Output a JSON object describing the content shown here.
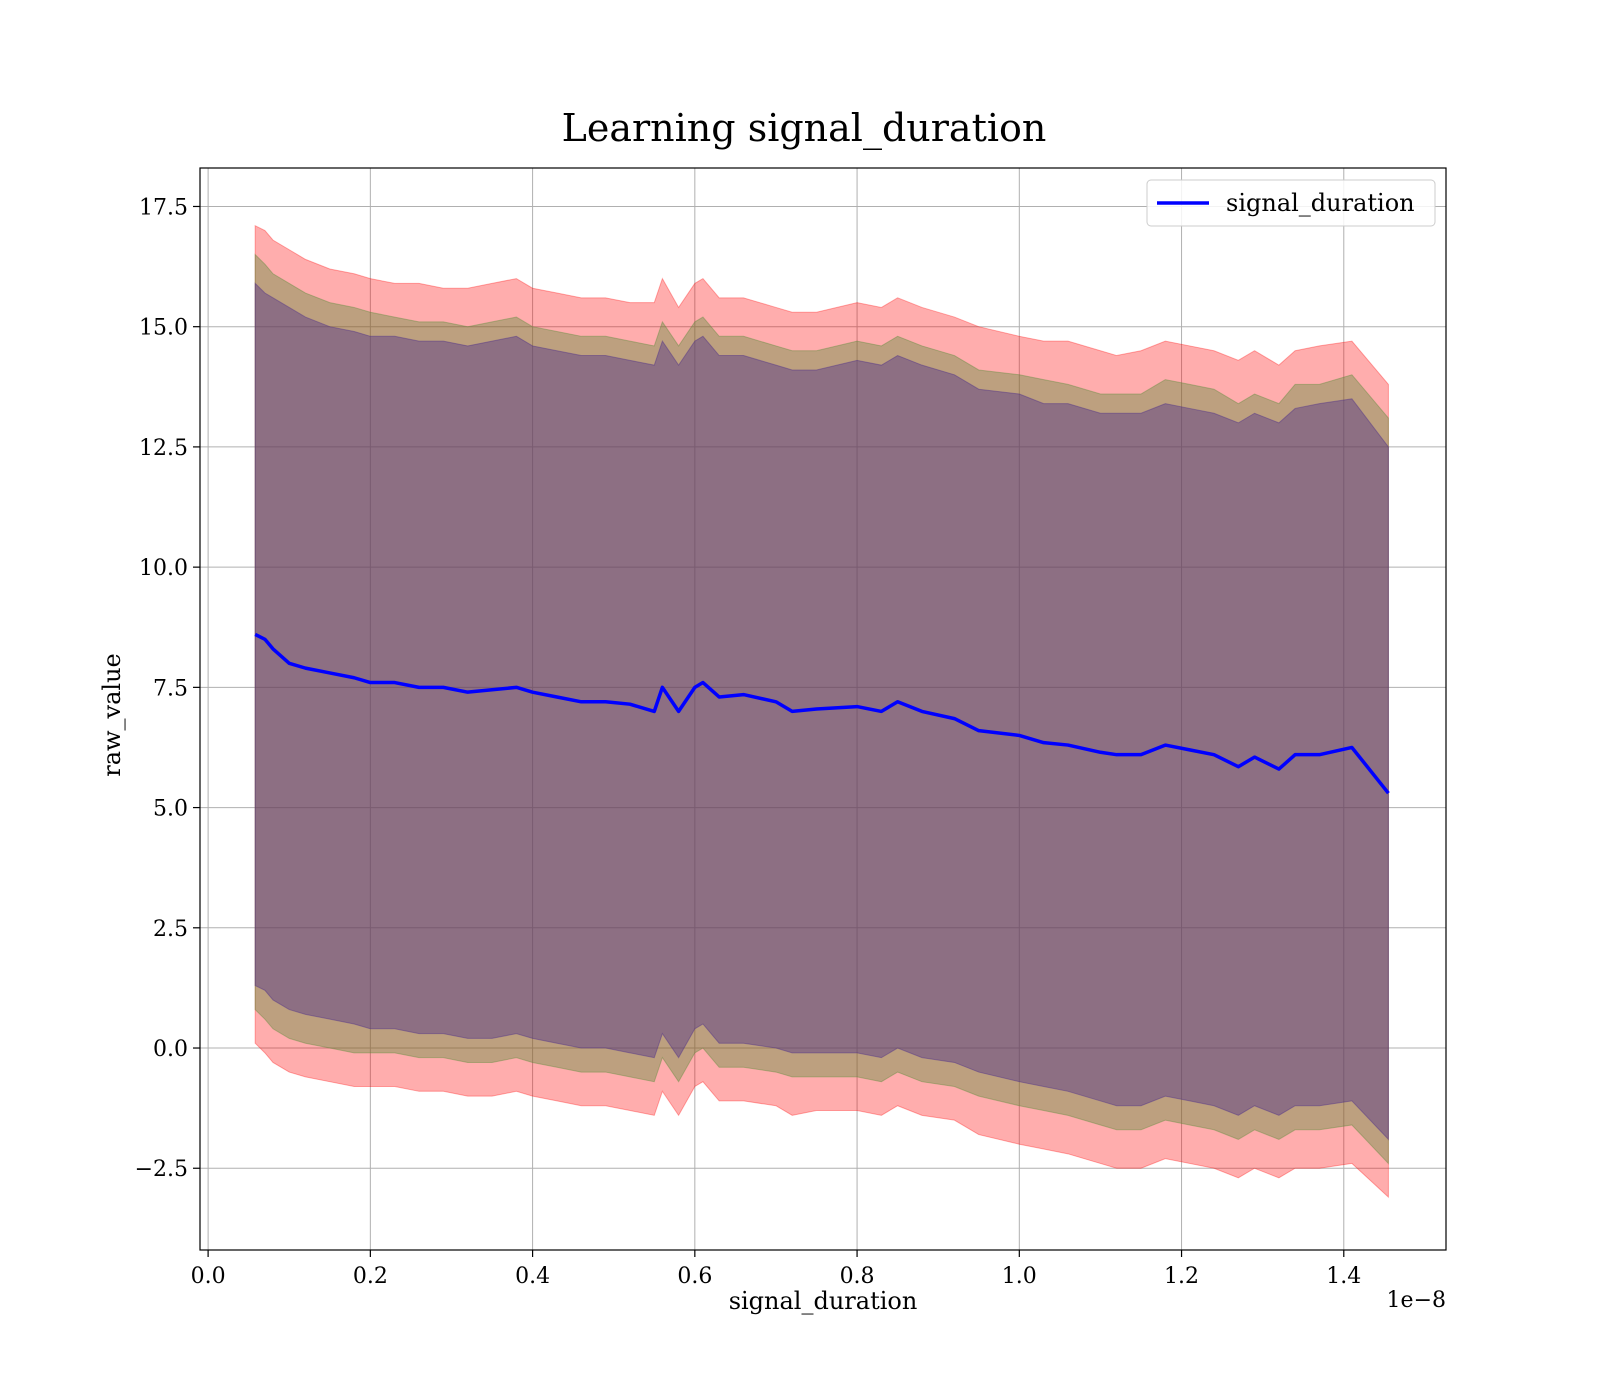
{
  "chart_data": {
    "type": "line",
    "title": "Learning signal_duration",
    "xlabel": "signal_duration",
    "ylabel": "raw_value",
    "x_offset_text": "1e−8",
    "xlim": [
      -0.01,
      1.526
    ],
    "ylim": [
      -4.2,
      18.3
    ],
    "x_ticks": [
      0.0,
      0.2,
      0.4,
      0.6,
      0.8,
      1.0,
      1.2,
      1.4
    ],
    "x_tick_labels": [
      "0.0",
      "0.2",
      "0.4",
      "0.6",
      "0.8",
      "1.0",
      "1.2",
      "1.4"
    ],
    "y_ticks": [
      -2.5,
      0.0,
      2.5,
      5.0,
      7.5,
      10.0,
      12.5,
      15.0,
      17.5
    ],
    "y_tick_labels": [
      "−2.5",
      "0.0",
      "2.5",
      "5.0",
      "7.5",
      "10.0",
      "12.5",
      "15.0",
      "17.5"
    ],
    "grid": true,
    "legend_position": "top-right",
    "series": [
      {
        "name": "signal_duration",
        "color": "#0000ff",
        "x": [
          0.058,
          0.07,
          0.08,
          0.1,
          0.12,
          0.15,
          0.18,
          0.2,
          0.23,
          0.26,
          0.29,
          0.32,
          0.35,
          0.38,
          0.4,
          0.43,
          0.46,
          0.49,
          0.52,
          0.55,
          0.56,
          0.58,
          0.6,
          0.61,
          0.63,
          0.66,
          0.7,
          0.72,
          0.75,
          0.8,
          0.83,
          0.85,
          0.88,
          0.92,
          0.95,
          1.0,
          1.03,
          1.06,
          1.1,
          1.12,
          1.15,
          1.18,
          1.21,
          1.24,
          1.27,
          1.29,
          1.32,
          1.34,
          1.37,
          1.41,
          1.455
        ],
        "y": [
          8.6,
          8.5,
          8.3,
          8.0,
          7.9,
          7.8,
          7.7,
          7.6,
          7.6,
          7.5,
          7.5,
          7.4,
          7.45,
          7.5,
          7.4,
          7.3,
          7.2,
          7.2,
          7.15,
          7.0,
          7.5,
          7.0,
          7.5,
          7.6,
          7.3,
          7.35,
          7.2,
          7.0,
          7.05,
          7.1,
          7.0,
          7.2,
          7.0,
          6.85,
          6.6,
          6.5,
          6.35,
          6.3,
          6.15,
          6.1,
          6.1,
          6.3,
          6.2,
          6.1,
          5.85,
          6.05,
          5.8,
          6.1,
          6.1,
          6.25,
          5.3
        ]
      }
    ],
    "bands": [
      {
        "color": "#ff0000",
        "opacity": 0.32,
        "x": [
          0.058,
          0.07,
          0.08,
          0.1,
          0.12,
          0.15,
          0.18,
          0.2,
          0.23,
          0.26,
          0.29,
          0.32,
          0.35,
          0.38,
          0.4,
          0.43,
          0.46,
          0.49,
          0.52,
          0.55,
          0.56,
          0.58,
          0.6,
          0.61,
          0.63,
          0.66,
          0.7,
          0.72,
          0.75,
          0.8,
          0.83,
          0.85,
          0.88,
          0.92,
          0.95,
          1.0,
          1.03,
          1.06,
          1.1,
          1.12,
          1.15,
          1.18,
          1.21,
          1.24,
          1.27,
          1.29,
          1.32,
          1.34,
          1.37,
          1.41,
          1.455
        ],
        "upper": [
          17.1,
          17.0,
          16.8,
          16.6,
          16.4,
          16.2,
          16.1,
          16.0,
          15.9,
          15.9,
          15.8,
          15.8,
          15.9,
          16.0,
          15.8,
          15.7,
          15.6,
          15.6,
          15.5,
          15.5,
          16.0,
          15.4,
          15.9,
          16.0,
          15.6,
          15.6,
          15.4,
          15.3,
          15.3,
          15.5,
          15.4,
          15.6,
          15.4,
          15.2,
          15.0,
          14.8,
          14.7,
          14.7,
          14.5,
          14.4,
          14.5,
          14.7,
          14.6,
          14.5,
          14.3,
          14.5,
          14.2,
          14.5,
          14.6,
          14.7,
          13.8
        ],
        "lower": [
          0.1,
          -0.1,
          -0.3,
          -0.5,
          -0.6,
          -0.7,
          -0.8,
          -0.8,
          -0.8,
          -0.9,
          -0.9,
          -1.0,
          -1.0,
          -0.9,
          -1.0,
          -1.1,
          -1.2,
          -1.2,
          -1.3,
          -1.4,
          -0.9,
          -1.4,
          -0.8,
          -0.7,
          -1.1,
          -1.1,
          -1.2,
          -1.4,
          -1.3,
          -1.3,
          -1.4,
          -1.2,
          -1.4,
          -1.5,
          -1.8,
          -2.0,
          -2.1,
          -2.2,
          -2.4,
          -2.5,
          -2.5,
          -2.3,
          -2.4,
          -2.5,
          -2.7,
          -2.5,
          -2.7,
          -2.5,
          -2.5,
          -2.4,
          -3.1
        ]
      },
      {
        "color": "#5a8c3a",
        "opacity": 0.4,
        "x": [
          0.058,
          0.07,
          0.08,
          0.1,
          0.12,
          0.15,
          0.18,
          0.2,
          0.23,
          0.26,
          0.29,
          0.32,
          0.35,
          0.38,
          0.4,
          0.43,
          0.46,
          0.49,
          0.52,
          0.55,
          0.56,
          0.58,
          0.6,
          0.61,
          0.63,
          0.66,
          0.7,
          0.72,
          0.75,
          0.8,
          0.83,
          0.85,
          0.88,
          0.92,
          0.95,
          1.0,
          1.03,
          1.06,
          1.1,
          1.12,
          1.15,
          1.18,
          1.21,
          1.24,
          1.27,
          1.29,
          1.32,
          1.34,
          1.37,
          1.41,
          1.455
        ],
        "upper": [
          16.5,
          16.3,
          16.1,
          15.9,
          15.7,
          15.5,
          15.4,
          15.3,
          15.2,
          15.1,
          15.1,
          15.0,
          15.1,
          15.2,
          15.0,
          14.9,
          14.8,
          14.8,
          14.7,
          14.6,
          15.1,
          14.6,
          15.1,
          15.2,
          14.8,
          14.8,
          14.6,
          14.5,
          14.5,
          14.7,
          14.6,
          14.8,
          14.6,
          14.4,
          14.1,
          14.0,
          13.9,
          13.8,
          13.6,
          13.6,
          13.6,
          13.9,
          13.8,
          13.7,
          13.4,
          13.6,
          13.4,
          13.8,
          13.8,
          14.0,
          13.1
        ],
        "lower": [
          0.8,
          0.6,
          0.4,
          0.2,
          0.1,
          0.0,
          -0.1,
          -0.1,
          -0.1,
          -0.2,
          -0.2,
          -0.3,
          -0.3,
          -0.2,
          -0.3,
          -0.4,
          -0.5,
          -0.5,
          -0.6,
          -0.7,
          -0.2,
          -0.7,
          -0.1,
          0.0,
          -0.4,
          -0.4,
          -0.5,
          -0.6,
          -0.6,
          -0.6,
          -0.7,
          -0.5,
          -0.7,
          -0.8,
          -1.0,
          -1.2,
          -1.3,
          -1.4,
          -1.6,
          -1.7,
          -1.7,
          -1.5,
          -1.6,
          -1.7,
          -1.9,
          -1.7,
          -1.9,
          -1.7,
          -1.7,
          -1.6,
          -2.4
        ]
      },
      {
        "color": "#4b2c8a",
        "opacity": 0.42,
        "x": [
          0.058,
          0.07,
          0.08,
          0.1,
          0.12,
          0.15,
          0.18,
          0.2,
          0.23,
          0.26,
          0.29,
          0.32,
          0.35,
          0.38,
          0.4,
          0.43,
          0.46,
          0.49,
          0.52,
          0.55,
          0.56,
          0.58,
          0.6,
          0.61,
          0.63,
          0.66,
          0.7,
          0.72,
          0.75,
          0.8,
          0.83,
          0.85,
          0.88,
          0.92,
          0.95,
          1.0,
          1.03,
          1.06,
          1.1,
          1.12,
          1.15,
          1.18,
          1.21,
          1.24,
          1.27,
          1.29,
          1.32,
          1.34,
          1.37,
          1.41,
          1.455
        ],
        "upper": [
          15.9,
          15.7,
          15.6,
          15.4,
          15.2,
          15.0,
          14.9,
          14.8,
          14.8,
          14.7,
          14.7,
          14.6,
          14.7,
          14.8,
          14.6,
          14.5,
          14.4,
          14.4,
          14.3,
          14.2,
          14.7,
          14.2,
          14.7,
          14.8,
          14.4,
          14.4,
          14.2,
          14.1,
          14.1,
          14.3,
          14.2,
          14.4,
          14.2,
          14.0,
          13.7,
          13.6,
          13.4,
          13.4,
          13.2,
          13.2,
          13.2,
          13.4,
          13.3,
          13.2,
          13.0,
          13.2,
          13.0,
          13.3,
          13.4,
          13.5,
          12.5
        ],
        "lower": [
          1.3,
          1.2,
          1.0,
          0.8,
          0.7,
          0.6,
          0.5,
          0.4,
          0.4,
          0.3,
          0.3,
          0.2,
          0.2,
          0.3,
          0.2,
          0.1,
          0.0,
          0.0,
          -0.1,
          -0.2,
          0.3,
          -0.2,
          0.4,
          0.5,
          0.1,
          0.1,
          0.0,
          -0.1,
          -0.1,
          -0.1,
          -0.2,
          0.0,
          -0.2,
          -0.3,
          -0.5,
          -0.7,
          -0.8,
          -0.9,
          -1.1,
          -1.2,
          -1.2,
          -1.0,
          -1.1,
          -1.2,
          -1.4,
          -1.2,
          -1.4,
          -1.2,
          -1.2,
          -1.1,
          -1.9
        ]
      }
    ]
  }
}
